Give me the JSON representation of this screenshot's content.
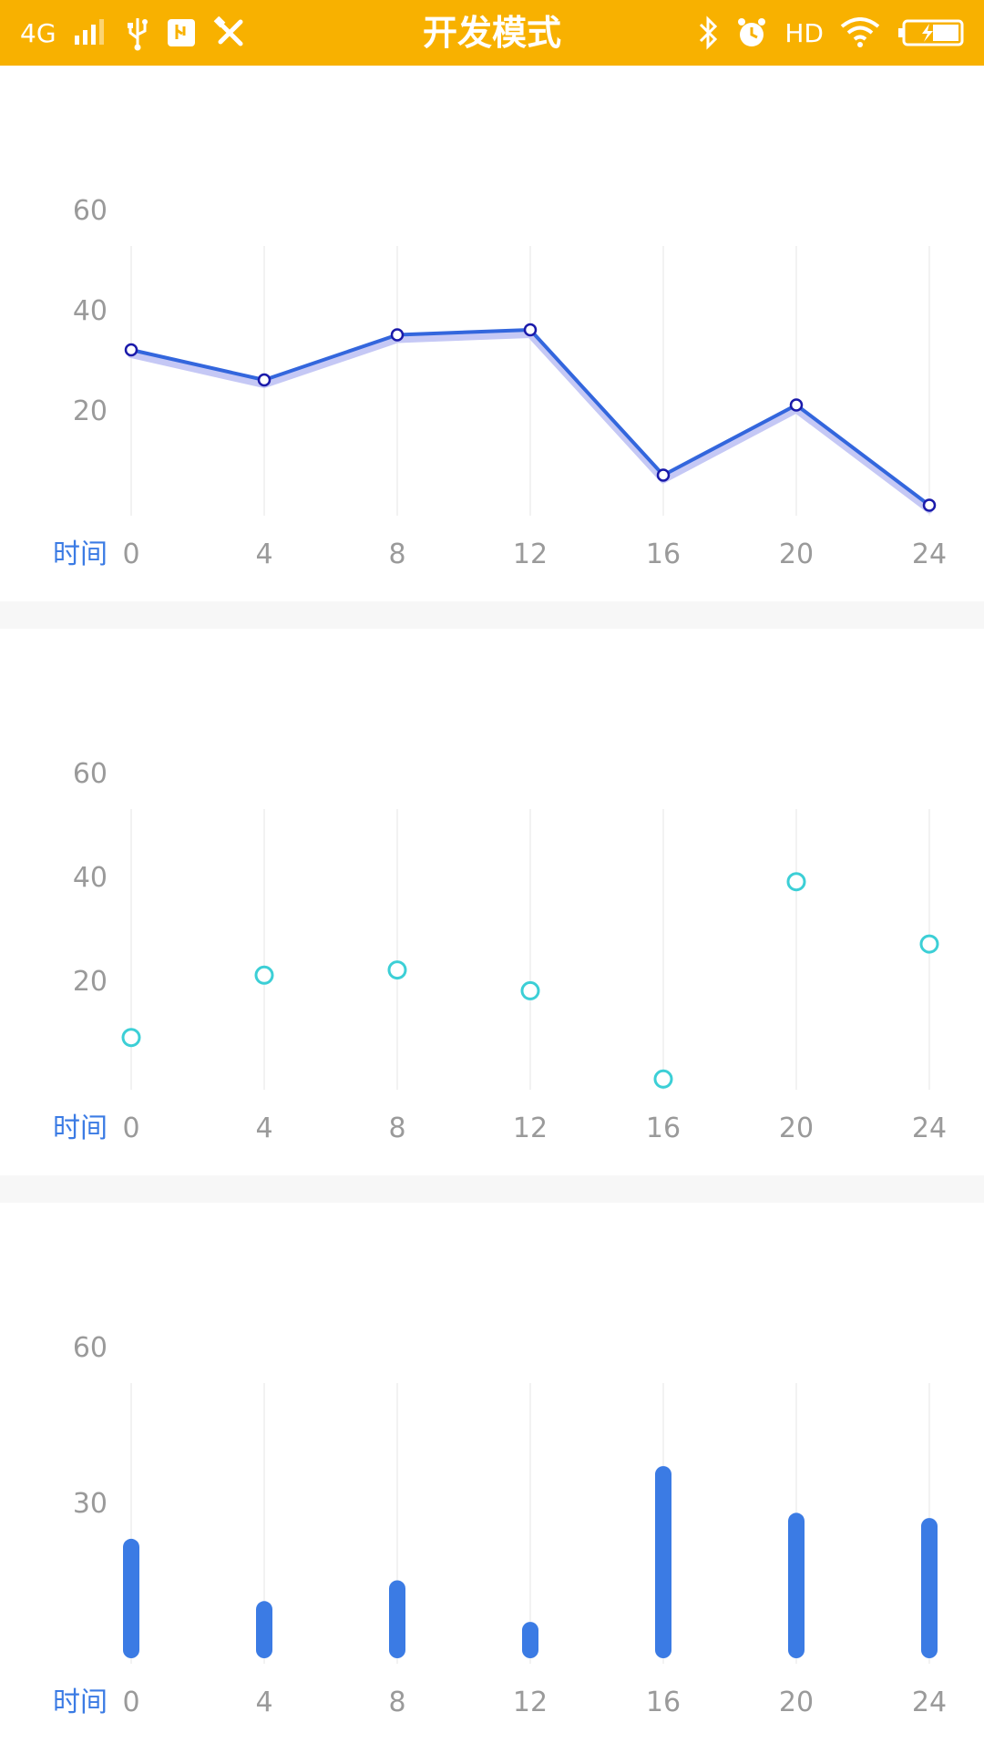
{
  "status_bar": {
    "title": "开发模式",
    "network": "4G",
    "hd": "HD",
    "left_icons": [
      "signal-icon",
      "usb-icon",
      "usb-debug-icon",
      "tools-icon"
    ],
    "right_icons": [
      "bluetooth-icon",
      "alarm-icon",
      "wifi-icon",
      "battery-charging-icon"
    ]
  },
  "colors": {
    "status_bar": "#F8B100",
    "line": "#3366DD",
    "line_shadow": "#C5C8F5",
    "point_stroke": "#1A1AAA",
    "scatter": "#3CCFD6",
    "bar": "#3B7BE4",
    "axis_text": "#9A9A9A",
    "x_title": "#3B7BE4",
    "grid": "#EEEEEE",
    "separator": "#F7F7F7"
  },
  "chart_data": [
    {
      "type": "line",
      "xlabel": "时间",
      "x": [
        0,
        4,
        8,
        12,
        16,
        20,
        24
      ],
      "values": [
        32,
        26,
        35,
        36,
        7,
        21,
        1
      ],
      "yticks": [
        20,
        40,
        60
      ],
      "ylim": [
        0,
        60
      ],
      "grid": true
    },
    {
      "type": "scatter",
      "xlabel": "时间",
      "x": [
        0,
        4,
        8,
        12,
        16,
        20,
        24
      ],
      "values": [
        9,
        21,
        22,
        18,
        1,
        39,
        27
      ],
      "yticks": [
        20,
        40,
        60
      ],
      "ylim": [
        0,
        60
      ],
      "grid": true
    },
    {
      "type": "bar",
      "xlabel": "时间",
      "x": [
        0,
        4,
        8,
        12,
        16,
        20,
        24
      ],
      "values": [
        23,
        11,
        15,
        7,
        37,
        28,
        27
      ],
      "yticks": [
        30,
        60
      ],
      "ylim": [
        0,
        60
      ],
      "grid": true
    }
  ]
}
